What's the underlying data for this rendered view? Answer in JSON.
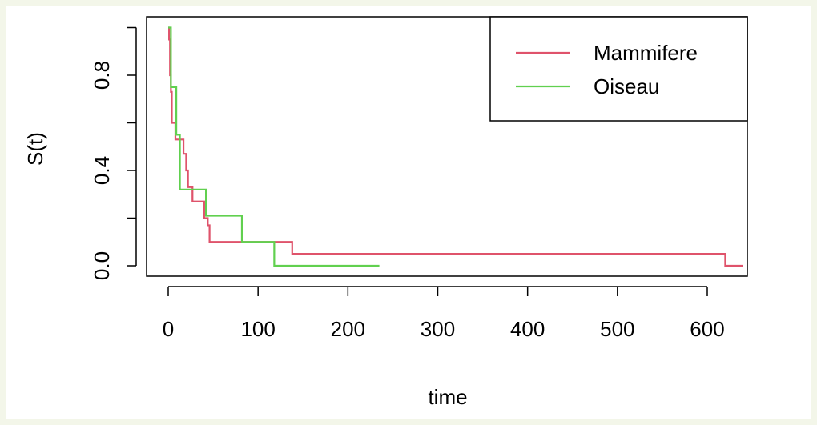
{
  "chart_data": {
    "type": "line",
    "title": "",
    "xlabel": "time",
    "ylabel": "S(t)",
    "xlim": [
      0,
      640
    ],
    "ylim": [
      0,
      1
    ],
    "x_ticks": [
      0,
      100,
      200,
      300,
      400,
      500,
      600
    ],
    "x_tick_labels": [
      "0",
      "100",
      "200",
      "300",
      "400",
      "500",
      "600"
    ],
    "y_ticks": [
      0.0,
      0.4,
      0.8
    ],
    "y_tick_labels": [
      "0.0",
      "0.4",
      "0.8"
    ],
    "grid": false,
    "legend_position": "top-right",
    "series": [
      {
        "name": "Mammifere",
        "color": "#DF536B",
        "step": true,
        "points": [
          [
            0,
            1.0
          ],
          [
            1,
            0.95
          ],
          [
            2,
            0.8
          ],
          [
            3,
            0.73
          ],
          [
            4,
            0.6
          ],
          [
            8,
            0.53
          ],
          [
            17,
            0.47
          ],
          [
            20,
            0.4
          ],
          [
            22,
            0.33
          ],
          [
            27,
            0.27
          ],
          [
            40,
            0.2
          ],
          [
            44,
            0.17
          ],
          [
            46,
            0.1
          ],
          [
            138,
            0.05
          ],
          [
            620,
            0.0
          ],
          [
            640,
            0.0
          ]
        ]
      },
      {
        "name": "Oiseau",
        "color": "#61D04F",
        "step": true,
        "points": [
          [
            0,
            1.0
          ],
          [
            3,
            0.75
          ],
          [
            9,
            0.55
          ],
          [
            13,
            0.32
          ],
          [
            42,
            0.21
          ],
          [
            82,
            0.1
          ],
          [
            118,
            0.0
          ],
          [
            235,
            0.0
          ]
        ]
      }
    ]
  }
}
